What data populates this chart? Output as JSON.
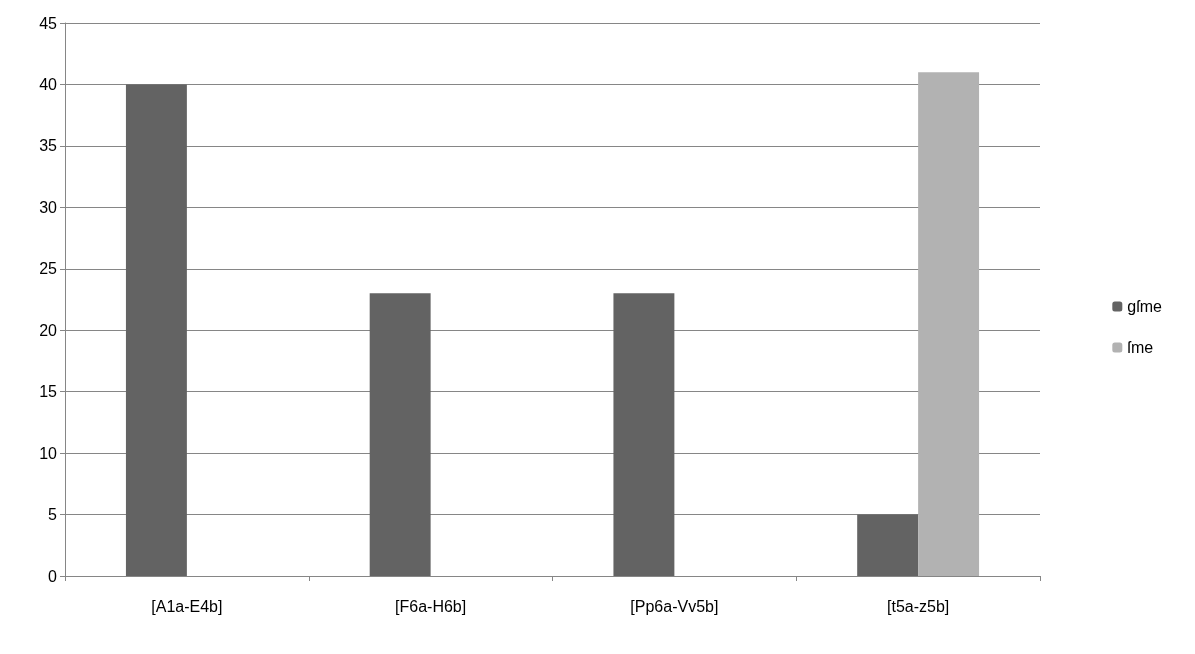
{
  "chart_data": {
    "type": "bar",
    "categories": [
      "[A1a-E4b]",
      "[F6a-H6b]",
      "[Pp6a-Vv5b]",
      "[t5a-z5b]"
    ],
    "series": [
      {
        "name": "gſme",
        "color": "#636363",
        "values": [
          40,
          23,
          23,
          5
        ]
      },
      {
        "name": "ſme",
        "color": "#b2b2b2",
        "values": [
          0,
          0,
          0,
          41
        ]
      }
    ],
    "ylim": [
      0,
      45
    ],
    "yticks": [
      0,
      5,
      10,
      15,
      20,
      25,
      30,
      35,
      40,
      45
    ],
    "grid": "y",
    "legend": "right"
  }
}
